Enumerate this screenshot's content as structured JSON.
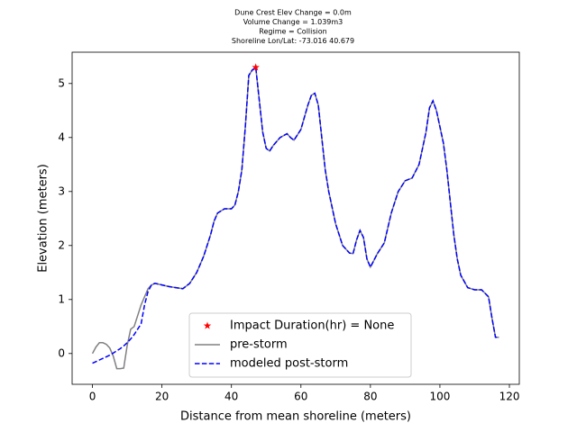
{
  "chart_data": {
    "type": "line",
    "title": [
      "Dune Crest Elev Change = 0.0m",
      "Volume Change = 1.039m3",
      "Regime = Collision",
      "Shoreline Lon/Lat: -73.016 40.679"
    ],
    "x_label": "Distance from mean shoreline (meters)",
    "y_label": "Elevation (meters)",
    "x": [
      0,
      1,
      2,
      3,
      4,
      5,
      6,
      7,
      8,
      9,
      10,
      11,
      12,
      13,
      14,
      15,
      16,
      17,
      18,
      20,
      22,
      24,
      26,
      28,
      30,
      32,
      34,
      35,
      36,
      38,
      40,
      41,
      42,
      43,
      44,
      45,
      46,
      47,
      48,
      49,
      50,
      51,
      52,
      54,
      56,
      57,
      58,
      60,
      62,
      63,
      64,
      65,
      66,
      67,
      68,
      70,
      72,
      74,
      75,
      76,
      77,
      78,
      79,
      80,
      82,
      84,
      86,
      88,
      90,
      92,
      94,
      96,
      97,
      98,
      99,
      100,
      101,
      102,
      103,
      104,
      105,
      106,
      108,
      110,
      112,
      114,
      115,
      116,
      117
    ],
    "series": [
      {
        "name": "pre-storm",
        "color": "#808080",
        "style": "solid",
        "values": [
          0,
          0.12,
          0.2,
          0.2,
          0.17,
          0.1,
          -0.05,
          -0.28,
          -0.28,
          -0.27,
          0.15,
          0.45,
          0.5,
          0.7,
          0.9,
          1.05,
          1.2,
          1.27,
          1.3,
          1.27,
          1.24,
          1.22,
          1.2,
          1.3,
          1.5,
          1.8,
          2.2,
          2.45,
          2.6,
          2.68,
          2.68,
          2.75,
          3.0,
          3.4,
          4.2,
          5.15,
          5.25,
          5.3,
          4.7,
          4.1,
          3.8,
          3.75,
          3.85,
          4.0,
          4.07,
          4.0,
          3.95,
          4.15,
          4.6,
          4.78,
          4.82,
          4.6,
          4.0,
          3.4,
          3.0,
          2.4,
          2.0,
          1.86,
          1.85,
          2.1,
          2.28,
          2.15,
          1.75,
          1.6,
          1.85,
          2.05,
          2.6,
          3.0,
          3.2,
          3.25,
          3.5,
          4.1,
          4.55,
          4.68,
          4.5,
          4.2,
          3.9,
          3.4,
          2.8,
          2.2,
          1.75,
          1.45,
          1.22,
          1.18,
          1.18,
          1.05,
          0.65,
          0.3,
          0.3
        ]
      },
      {
        "name": "modeled post-storm",
        "color": "#0000ff",
        "style": "dashed",
        "values": [
          -0.18,
          -0.15,
          -0.12,
          -0.09,
          -0.06,
          -0.03,
          0.01,
          0.05,
          0.09,
          0.14,
          0.2,
          0.27,
          0.35,
          0.45,
          0.55,
          0.9,
          1.15,
          1.27,
          1.3,
          1.27,
          1.24,
          1.22,
          1.2,
          1.3,
          1.5,
          1.8,
          2.2,
          2.45,
          2.6,
          2.68,
          2.68,
          2.75,
          3.0,
          3.4,
          4.2,
          5.15,
          5.25,
          5.3,
          4.7,
          4.1,
          3.8,
          3.75,
          3.85,
          4.0,
          4.07,
          4.0,
          3.95,
          4.15,
          4.6,
          4.78,
          4.82,
          4.6,
          4.0,
          3.4,
          3.0,
          2.4,
          2.0,
          1.86,
          1.85,
          2.1,
          2.28,
          2.15,
          1.75,
          1.6,
          1.85,
          2.05,
          2.6,
          3.0,
          3.2,
          3.25,
          3.5,
          4.1,
          4.55,
          4.68,
          4.5,
          4.2,
          3.9,
          3.4,
          2.8,
          2.2,
          1.75,
          1.45,
          1.22,
          1.18,
          1.18,
          1.05,
          0.65,
          0.3,
          0.3
        ]
      },
      {
        "name": "Impact Duration(hr) = None",
        "color": "#ff0000",
        "style": "star",
        "x": [
          47
        ],
        "values": [
          5.3
        ]
      }
    ],
    "legend_order": [
      2,
      0,
      1
    ],
    "xlim": [
      -5.85,
      122.85
    ],
    "xticks": [
      0,
      20,
      40,
      60,
      80,
      100,
      120
    ],
    "ylim": [
      -0.57,
      5.58
    ],
    "yticks": [
      0,
      1,
      2,
      3,
      4,
      5
    ],
    "legend": "lower center"
  }
}
